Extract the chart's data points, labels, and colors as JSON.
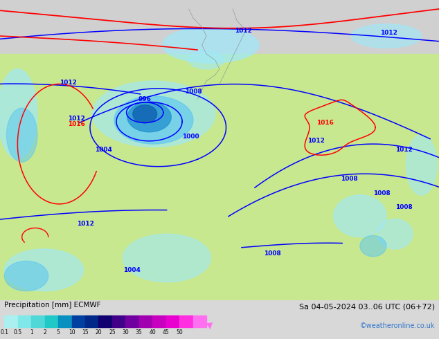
{
  "title_left": "Precipitation [mm] ECMWF",
  "title_right_line1": "Sa 04-05-2024 03..06 UTC (06+72)",
  "title_right_line2": "©weatheronline.co.uk",
  "colorbar_labels": [
    "0.1",
    "0.5",
    "1",
    "2",
    "5",
    "10",
    "15",
    "20",
    "25",
    "30",
    "35",
    "40",
    "45",
    "50"
  ],
  "colorbar_colors": [
    "#aaf0f0",
    "#80e8e8",
    "#50d8d8",
    "#20c8c8",
    "#0890c0",
    "#0040a0",
    "#002888",
    "#100070",
    "#400088",
    "#7000a0",
    "#a000b0",
    "#c800c0",
    "#e800d0",
    "#ff30e0",
    "#ff70f0"
  ],
  "land_color": "#c8e890",
  "sea_color": "#d0e8f0",
  "land_gray": "#d0d0d0",
  "precip_light": "#a0e8f8",
  "precip_mid": "#60c8f0",
  "precip_dark": "#2090d0",
  "precip_core": "#1060b0",
  "bg_color": "#d8d8d8",
  "fig_width": 6.34,
  "fig_height": 4.9,
  "dpi": 100
}
